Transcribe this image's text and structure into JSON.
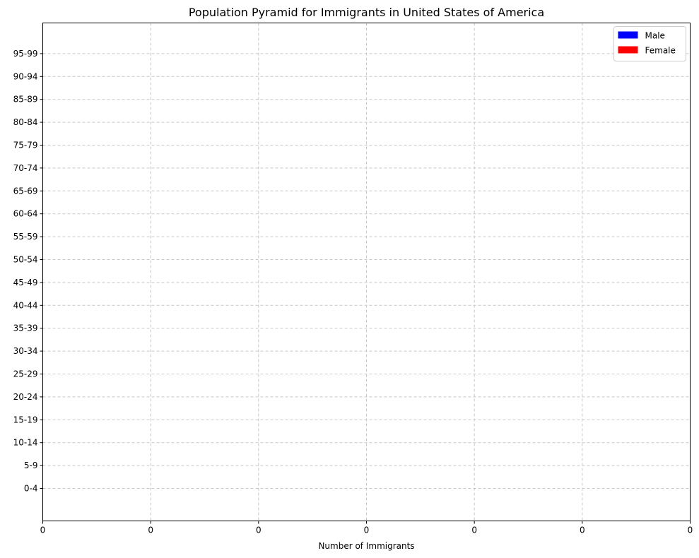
{
  "chart_data": {
    "type": "bar",
    "orientation": "horizontal",
    "title": "Population Pyramid for Immigrants in United States of America",
    "xlabel": "Number of Immigrants",
    "ylabel": "",
    "categories": [
      "0-4",
      "5-9",
      "10-14",
      "15-19",
      "20-24",
      "25-29",
      "30-34",
      "35-39",
      "40-44",
      "45-49",
      "50-54",
      "55-59",
      "60-64",
      "65-69",
      "70-74",
      "75-79",
      "80-84",
      "85-89",
      "90-94",
      "95-99"
    ],
    "series": [
      {
        "name": "Male",
        "color": "#0000ff",
        "values": [
          0,
          0,
          0,
          0,
          0,
          0,
          0,
          0,
          0,
          0,
          0,
          0,
          0,
          0,
          0,
          0,
          0,
          0,
          0,
          0
        ]
      },
      {
        "name": "Female",
        "color": "#ff0000",
        "values": [
          0,
          0,
          0,
          0,
          0,
          0,
          0,
          0,
          0,
          0,
          0,
          0,
          0,
          0,
          0,
          0,
          0,
          0,
          0,
          0
        ]
      }
    ],
    "x_tick_labels": [
      "0",
      "0",
      "0",
      "0",
      "0",
      "0",
      "0"
    ],
    "grid": true,
    "grid_style": "dashed",
    "legend_position": "top-right"
  }
}
